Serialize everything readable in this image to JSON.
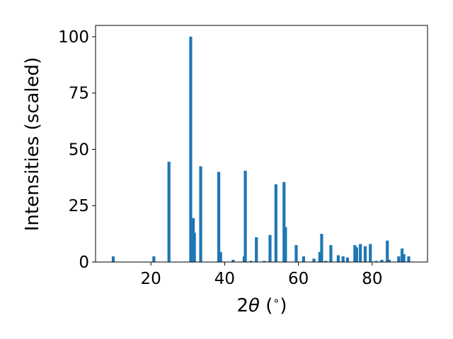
{
  "chart_data": {
    "type": "bar",
    "title": "",
    "xlabel": "2θ (°)",
    "xlabel_parts": {
      "pre": "2",
      "theta": "θ",
      "post": " (",
      "deg": "∘",
      "close": ")"
    },
    "ylabel": "Intensities (scaled)",
    "xlim": [
      5,
      95
    ],
    "ylim": [
      0,
      105
    ],
    "xticks": [
      20,
      40,
      60,
      80
    ],
    "yticks": [
      0,
      25,
      50,
      75,
      100
    ],
    "xtick_labels": [
      "20",
      "40",
      "60",
      "80"
    ],
    "ytick_labels": [
      "0",
      "25",
      "50",
      "75",
      "100"
    ],
    "grid": false,
    "bar_color": "#1f77b4",
    "x": [
      9.8,
      20.8,
      24.9,
      30.8,
      31.5,
      31.8,
      33.5,
      38.4,
      38.9,
      42.3,
      45.3,
      45.6,
      47.1,
      48.6,
      50.7,
      52.3,
      53.9,
      56.1,
      56.5,
      59.4,
      61.4,
      64.2,
      65.8,
      66.3,
      67.4,
      68.8,
      70.8,
      72.1,
      73.3,
      75.3,
      75.8,
      76.8,
      78.1,
      79.5,
      81.1,
      82.6,
      84.1,
      84.6,
      87.2,
      88.1,
      88.6,
      89.9
    ],
    "y": [
      2.5,
      2.5,
      44.5,
      100,
      19.5,
      13,
      42.5,
      40,
      4.5,
      1,
      2.5,
      40.5,
      0.5,
      11,
      0.5,
      12,
      34.5,
      35.5,
      15.5,
      7.5,
      2.5,
      1.5,
      4.5,
      12.5,
      0.5,
      7.5,
      3,
      2.5,
      2,
      7.5,
      6.5,
      8,
      7,
      8,
      0.5,
      1,
      9.5,
      1,
      2.5,
      6,
      3.5,
      2.5
    ]
  }
}
